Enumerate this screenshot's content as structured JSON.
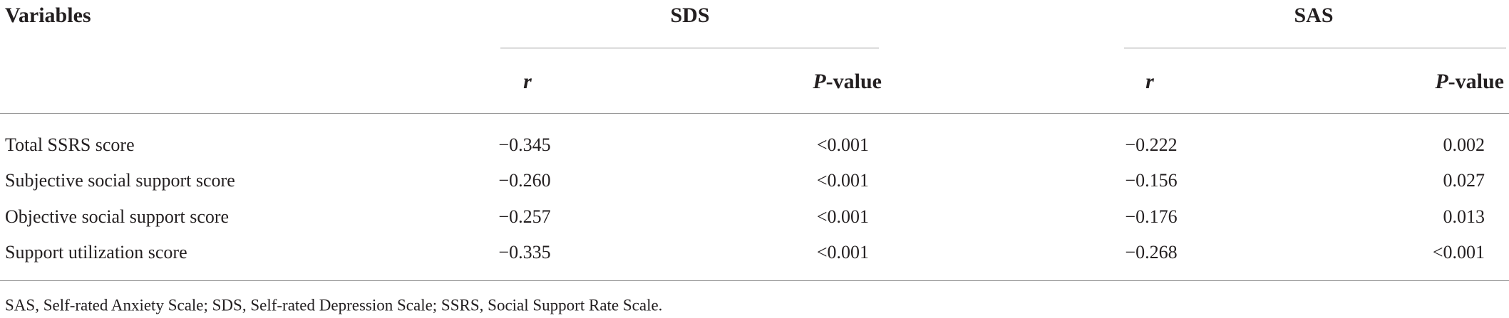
{
  "table": {
    "header": [
      "Variables",
      "SDS",
      "SAS"
    ],
    "subheaders": [
      {
        "italic": "r"
      },
      {
        "italic": "P",
        "rest": "-value"
      },
      {
        "italic": "r"
      },
      {
        "italic": "P",
        "rest": "-value"
      }
    ],
    "rows": [
      [
        "Total SSRS score",
        "−0.345",
        "<0.001",
        "−0.222",
        "0.002"
      ],
      [
        "Subjective social support score",
        "−0.260",
        "<0.001",
        "−0.156",
        "0.027"
      ],
      [
        "Objective social support score",
        "−0.257",
        "<0.001",
        "−0.176",
        "0.013"
      ],
      [
        "Support utilization score",
        "−0.335",
        "<0.001",
        "−0.268",
        "<0.001"
      ]
    ],
    "footnote": "SAS, Self-rated Anxiety Scale; SDS, Self-rated Depression Scale; SSRS, Social Support Rate Scale."
  }
}
